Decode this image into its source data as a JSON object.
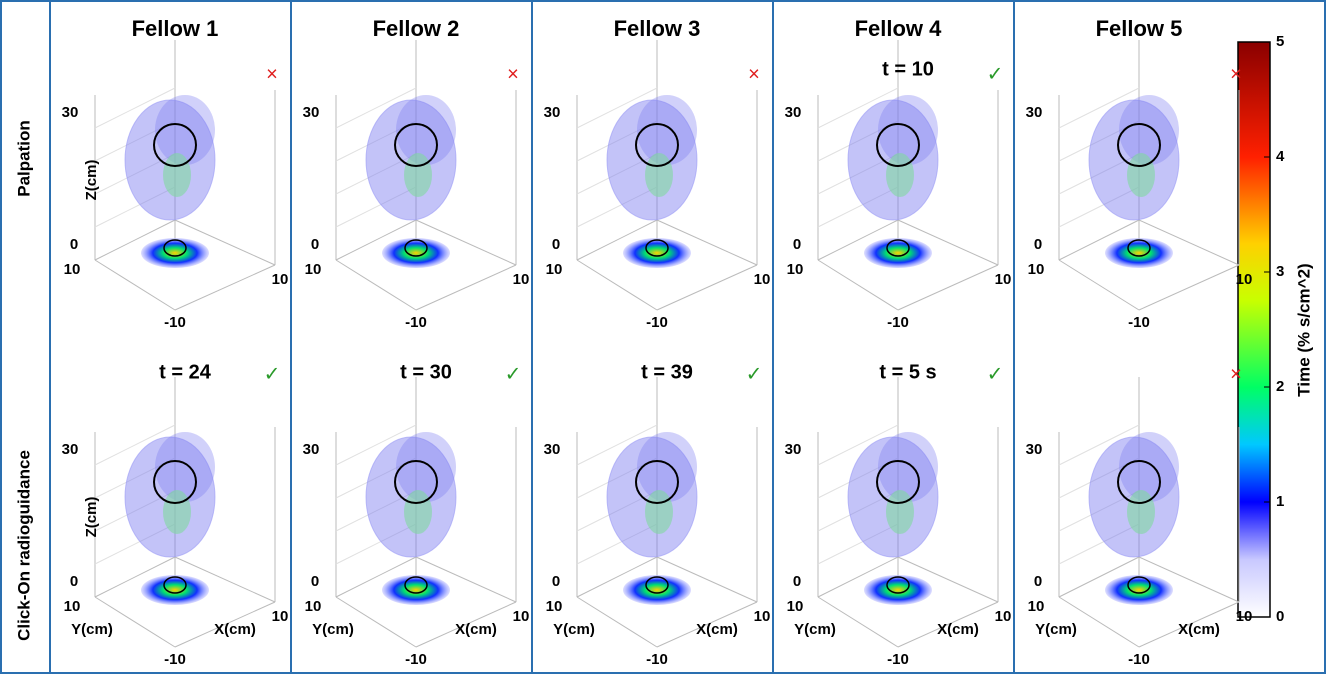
{
  "columns": [
    "Fellow 1",
    "Fellow 2",
    "Fellow 3",
    "Fellow 4",
    "Fellow 5"
  ],
  "rows": [
    "Palpation",
    "Click-On radioguidance"
  ],
  "panels": [
    [
      {
        "result": "×"
      },
      {
        "result": "×"
      },
      {
        "result": "×"
      },
      {
        "time": "t = 10",
        "result": "✓"
      },
      {
        "result": "×"
      }
    ],
    [
      {
        "time": "t = 24",
        "result": "✓"
      },
      {
        "time": "t = 30",
        "result": "✓"
      },
      {
        "time": "t = 39",
        "result": "✓"
      },
      {
        "time": "t = 5 s",
        "result": "✓"
      },
      {
        "result": "×"
      }
    ]
  ],
  "axes": {
    "z_title": "Z(cm)",
    "y_title": "Y(cm)",
    "x_title": "X(cm)",
    "z_top": "30",
    "z_bottom": "0",
    "y_tick": "10",
    "x_tick": "10",
    "corner_tick": "-10"
  },
  "colorbar": {
    "label": "Time (% s/cm^2)",
    "lim": [
      0,
      5
    ],
    "ticks": [
      0,
      1,
      2,
      3,
      4,
      5
    ]
  }
}
